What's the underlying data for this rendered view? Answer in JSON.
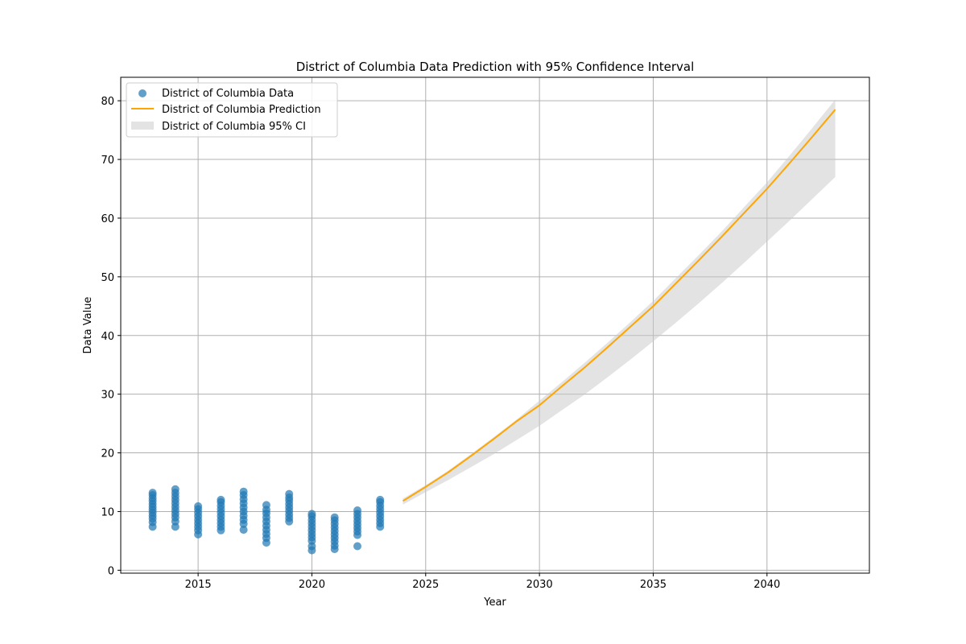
{
  "chart_data": {
    "type": "scatter",
    "title": "District of Columbia Data Prediction with 95% Confidence Interval",
    "xlabel": "Year",
    "ylabel": "Data Value",
    "xlim": [
      2011.6,
      2044.5
    ],
    "ylim": [
      -0.5,
      84
    ],
    "x_ticks": [
      2015,
      2020,
      2025,
      2030,
      2035,
      2040
    ],
    "y_ticks": [
      0,
      10,
      20,
      30,
      40,
      50,
      60,
      70,
      80
    ],
    "grid": true,
    "legend_position": "upper-left",
    "colors": {
      "data": "#1f77b4",
      "prediction": "#ffa500",
      "ci": "#c8c8c8"
    },
    "series": [
      {
        "name": "District of Columbia Data",
        "kind": "scatter",
        "points": [
          [
            2013,
            7.4
          ],
          [
            2013,
            8.2
          ],
          [
            2013,
            8.8
          ],
          [
            2013,
            9.3
          ],
          [
            2013,
            9.8
          ],
          [
            2013,
            10.3
          ],
          [
            2013,
            10.8
          ],
          [
            2013,
            11.3
          ],
          [
            2013,
            11.8
          ],
          [
            2013,
            12.3
          ],
          [
            2013,
            12.8
          ],
          [
            2013,
            13.2
          ],
          [
            2014,
            7.4
          ],
          [
            2014,
            8.3
          ],
          [
            2014,
            9.0
          ],
          [
            2014,
            9.6
          ],
          [
            2014,
            10.2
          ],
          [
            2014,
            10.8
          ],
          [
            2014,
            11.4
          ],
          [
            2014,
            12.0
          ],
          [
            2014,
            12.6
          ],
          [
            2014,
            13.2
          ],
          [
            2014,
            13.8
          ],
          [
            2015,
            6.1
          ],
          [
            2015,
            6.8
          ],
          [
            2015,
            7.4
          ],
          [
            2015,
            8.0
          ],
          [
            2015,
            8.6
          ],
          [
            2015,
            9.2
          ],
          [
            2015,
            9.8
          ],
          [
            2015,
            10.4
          ],
          [
            2015,
            10.9
          ],
          [
            2016,
            6.8
          ],
          [
            2016,
            7.4
          ],
          [
            2016,
            8.0
          ],
          [
            2016,
            8.6
          ],
          [
            2016,
            9.2
          ],
          [
            2016,
            9.8
          ],
          [
            2016,
            10.4
          ],
          [
            2016,
            11.0
          ],
          [
            2016,
            11.6
          ],
          [
            2016,
            12.0
          ],
          [
            2017,
            6.9
          ],
          [
            2017,
            7.9
          ],
          [
            2017,
            8.6
          ],
          [
            2017,
            9.3
          ],
          [
            2017,
            10.0
          ],
          [
            2017,
            10.7
          ],
          [
            2017,
            11.4
          ],
          [
            2017,
            12.1
          ],
          [
            2017,
            12.8
          ],
          [
            2017,
            13.4
          ],
          [
            2018,
            4.7
          ],
          [
            2018,
            5.5
          ],
          [
            2018,
            6.2
          ],
          [
            2018,
            6.9
          ],
          [
            2018,
            7.6
          ],
          [
            2018,
            8.3
          ],
          [
            2018,
            9.0
          ],
          [
            2018,
            9.7
          ],
          [
            2018,
            10.3
          ],
          [
            2018,
            11.1
          ],
          [
            2019,
            8.3
          ],
          [
            2019,
            8.9
          ],
          [
            2019,
            9.5
          ],
          [
            2019,
            10.1
          ],
          [
            2019,
            10.7
          ],
          [
            2019,
            11.3
          ],
          [
            2019,
            11.9
          ],
          [
            2019,
            12.4
          ],
          [
            2019,
            13.0
          ],
          [
            2020,
            3.4
          ],
          [
            2020,
            4.1
          ],
          [
            2020,
            5.0
          ],
          [
            2020,
            5.6
          ],
          [
            2020,
            6.2
          ],
          [
            2020,
            6.8
          ],
          [
            2020,
            7.4
          ],
          [
            2020,
            8.0
          ],
          [
            2020,
            8.6
          ],
          [
            2020,
            9.2
          ],
          [
            2020,
            9.6
          ],
          [
            2021,
            3.6
          ],
          [
            2021,
            4.2
          ],
          [
            2021,
            4.9
          ],
          [
            2021,
            5.5
          ],
          [
            2021,
            6.1
          ],
          [
            2021,
            6.7
          ],
          [
            2021,
            7.3
          ],
          [
            2021,
            7.9
          ],
          [
            2021,
            8.5
          ],
          [
            2021,
            9.0
          ],
          [
            2022,
            4.1
          ],
          [
            2022,
            6.0
          ],
          [
            2022,
            6.6
          ],
          [
            2022,
            7.2
          ],
          [
            2022,
            7.8
          ],
          [
            2022,
            8.4
          ],
          [
            2022,
            9.0
          ],
          [
            2022,
            9.6
          ],
          [
            2022,
            10.2
          ],
          [
            2023,
            7.4
          ],
          [
            2023,
            8.0
          ],
          [
            2023,
            8.6
          ],
          [
            2023,
            9.2
          ],
          [
            2023,
            9.8
          ],
          [
            2023,
            10.4
          ],
          [
            2023,
            11.0
          ],
          [
            2023,
            11.6
          ],
          [
            2023,
            12.0
          ]
        ]
      },
      {
        "name": "District of Columbia Prediction",
        "kind": "line",
        "x": [
          2024,
          2025,
          2026,
          2027,
          2028,
          2029,
          2030,
          2031,
          2032,
          2033,
          2034,
          2035,
          2036,
          2037,
          2038,
          2039,
          2040,
          2041,
          2042,
          2043
        ],
        "y": [
          11.8,
          14.2,
          16.7,
          19.5,
          22.4,
          25.4,
          28.1,
          31.4,
          34.6,
          38.0,
          41.5,
          45.0,
          48.9,
          52.8,
          56.8,
          60.9,
          65.0,
          69.4,
          73.9,
          78.5
        ]
      },
      {
        "name": "District of Columbia 95% CI",
        "kind": "band",
        "x": [
          2024,
          2025,
          2026,
          2027,
          2028,
          2029,
          2030,
          2031,
          2032,
          2033,
          2034,
          2035,
          2036,
          2037,
          2038,
          2039,
          2040,
          2041,
          2042,
          2043
        ],
        "lower": [
          11.2,
          13.3,
          15.4,
          17.6,
          19.8,
          22.2,
          24.6,
          27.3,
          30.0,
          32.9,
          35.9,
          39.0,
          42.2,
          45.5,
          48.9,
          52.4,
          56.0,
          59.6,
          63.3,
          67.0
        ],
        "upper": [
          12.2,
          14.5,
          17.0,
          19.8,
          22.7,
          25.7,
          28.9,
          32.1,
          35.4,
          38.8,
          42.3,
          45.9,
          49.8,
          53.7,
          57.7,
          61.9,
          66.1,
          70.7,
          75.4,
          80.2
        ]
      }
    ]
  }
}
